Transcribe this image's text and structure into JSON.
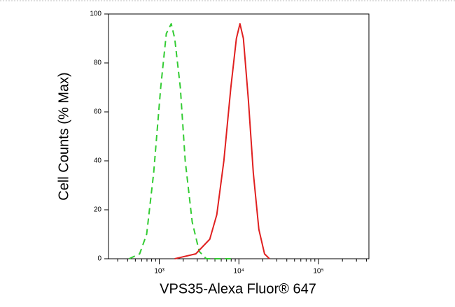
{
  "chart_data": {
    "type": "line",
    "xlabel": "VPS35-Alexa Fluor® 647",
    "ylabel": "Cell Counts (% Max)",
    "xscale": "log",
    "xlim": [
      230,
      430000
    ],
    "ylim": [
      0,
      100
    ],
    "yticks": [
      0,
      20,
      40,
      60,
      80,
      100
    ],
    "xticks": [
      {
        "value": 1000,
        "label": "10³"
      },
      {
        "value": 10000,
        "label": "10⁴"
      },
      {
        "value": 100000,
        "label": "10⁵"
      }
    ],
    "xminor_ticks": [
      300,
      400,
      500,
      600,
      700,
      800,
      900,
      2000,
      3000,
      4000,
      5000,
      6000,
      7000,
      8000,
      9000,
      20000,
      30000,
      40000,
      50000,
      60000,
      70000,
      80000,
      90000,
      200000,
      300000,
      400000
    ],
    "series": [
      {
        "color": "#33cc33",
        "dashed": true,
        "x": [
          418,
          566,
          693,
          850,
          1041,
          1225,
          1411,
          1563,
          1837,
          2118,
          2594,
          3176,
          3892,
          7925
        ],
        "values": [
          0,
          2,
          10,
          35,
          70,
          92,
          96,
          90,
          70,
          40,
          15,
          3,
          0,
          0
        ]
      },
      {
        "color": "#e02020",
        "dashed": false,
        "x": [
          1563,
          2872,
          4305,
          5271,
          6471,
          7925,
          9311,
          10310,
          11400,
          13150,
          15170,
          17830,
          20990,
          24170
        ],
        "values": [
          0,
          2,
          8,
          18,
          40,
          70,
          90,
          96,
          90,
          65,
          35,
          12,
          2,
          0
        ]
      }
    ]
  }
}
